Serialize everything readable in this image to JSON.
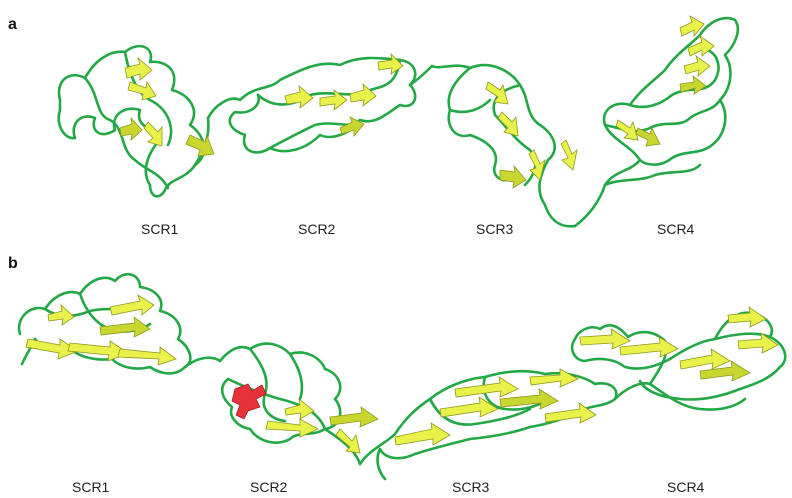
{
  "panels": [
    {
      "label": "a",
      "captions": [
        "SCR1",
        "SCR2",
        "SCR3",
        "SCR4"
      ]
    },
    {
      "label": "b",
      "captions": [
        "SCR1",
        "SCR2",
        "SCR3",
        "SCR4"
      ]
    }
  ],
  "colors": {
    "coil": "#22a845",
    "strand": "#e8f24a",
    "helix": "#e8323a",
    "background": "#ffffff"
  }
}
